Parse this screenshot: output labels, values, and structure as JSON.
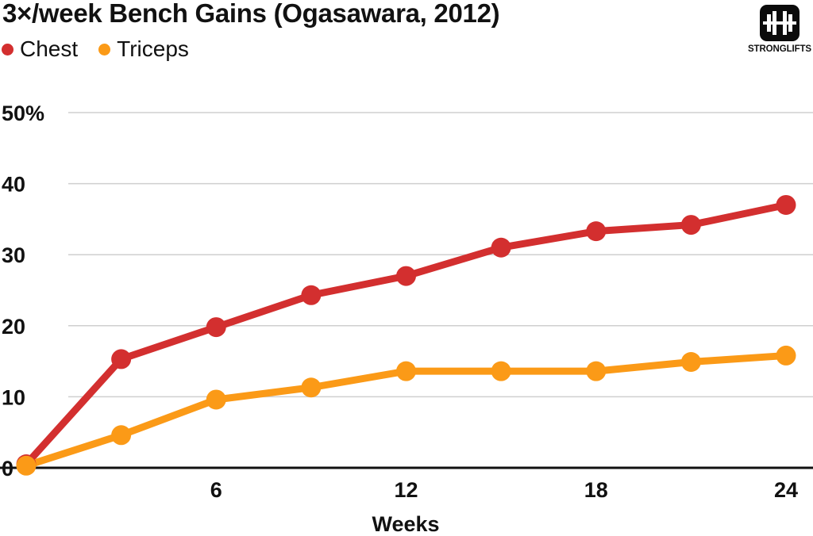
{
  "chart_data": {
    "type": "line",
    "title": "3×/week Bench Gains (Ogasawara, 2012)",
    "xlabel": "Weeks",
    "ylabel": "",
    "x": [
      0,
      3,
      6,
      9,
      12,
      15,
      18,
      21,
      24
    ],
    "xlim": [
      0,
      25
    ],
    "ylim": [
      0,
      50
    ],
    "x_ticks": [
      6,
      12,
      18,
      24
    ],
    "x_tick_labels": [
      "6",
      "12",
      "18",
      "24"
    ],
    "y_ticks": [
      0,
      10,
      20,
      30,
      40,
      50
    ],
    "y_tick_labels": [
      "0",
      "10",
      "20",
      "30",
      "40",
      "50%"
    ],
    "grid": true,
    "legend_position": "top-left",
    "series": [
      {
        "name": "Chest",
        "color": "#d32f2f",
        "values": [
          0.5,
          15.3,
          19.8,
          24.3,
          27.0,
          31.0,
          33.3,
          34.2,
          37.0
        ]
      },
      {
        "name": "Triceps",
        "color": "#fb9a17",
        "values": [
          0.3,
          4.6,
          9.6,
          11.3,
          13.6,
          13.6,
          13.6,
          14.9,
          15.8
        ]
      }
    ]
  },
  "logo": {
    "text": "STRONGLIFTS",
    "icon": "barbell-plates-icon"
  }
}
